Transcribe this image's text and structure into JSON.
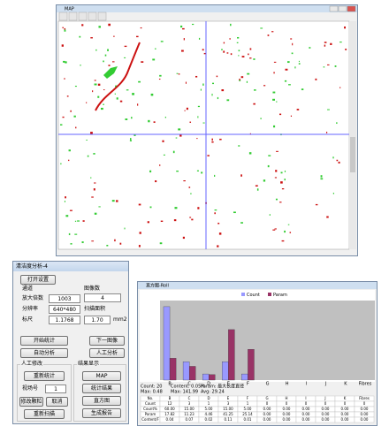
{
  "map_window": {
    "title": "MAP"
  },
  "control_panel": {
    "title": "清洁度分析-4",
    "open_button": "打开设置",
    "channel_group": "通道",
    "magnification_label": "放大倍数",
    "magnification": "1003",
    "resolution_label": "分辨率",
    "resolution": "640*480",
    "scale_label": "标尺",
    "scale": "1.1768",
    "image_count_label": "图像数",
    "image_count": "4",
    "scan_area_label": "扫描面积",
    "scan_area": "1.70",
    "scan_area_unit": "mm2",
    "start_button": "开始统计",
    "next_button": "下一图像",
    "auto_button": "自动分析",
    "manual_button": "人工分析",
    "manual_group": "人工修改",
    "recount_button": "重新统计",
    "field_label": "视场号",
    "field": "1",
    "modify_button": "修改颗粒",
    "cancel_button": "取消",
    "rescan_button": "重新扫描",
    "results_group": "结果显示",
    "map_button": "MAP",
    "stats_button": "统计结果",
    "histogram_button": "直方图",
    "report_button": "生成报告"
  },
  "chart_window": {
    "title": "直方图-Roll",
    "summary": [
      "Count: 20",
      "Content: 0.05%",
      "Param: 最大长度直径"
    ],
    "summary2": [
      "Max: 0.48",
      "Max: 141.99",
      "Avg: 29.24"
    ],
    "table": {
      "header": [
        "No.",
        "B",
        "C",
        "D",
        "E",
        "F",
        "G",
        "H",
        "I",
        "J",
        "K",
        "Fibres"
      ],
      "rows": [
        [
          "Count",
          "12",
          "3",
          "1",
          "3",
          "1",
          "0",
          "0",
          "0",
          "0",
          "0",
          "0"
        ],
        [
          "Count%",
          "60.00",
          "15.00",
          "5.00",
          "15.00",
          "5.00",
          "0.00",
          "0.00",
          "0.00",
          "0.00",
          "0.00",
          "0.00"
        ],
        [
          "Param",
          "17.82",
          "11.23",
          "4.46",
          "41.25",
          "25.14",
          "0.00",
          "0.00",
          "0.00",
          "0.00",
          "0.00",
          "0.00"
        ],
        [
          "Content/F",
          "0.04",
          "0.07",
          "0.02",
          "0.11",
          "0.01",
          "0.00",
          "0.00",
          "0.00",
          "0.00",
          "0.00",
          "0.00"
        ]
      ]
    }
  },
  "chart_data": {
    "type": "bar",
    "categories": [
      "B",
      "C",
      "D",
      "E",
      "F",
      "G",
      "H",
      "I",
      "J",
      "K",
      "Fibres"
    ],
    "series": [
      {
        "name": "Count",
        "color": "#9999ff",
        "values": [
          60,
          15,
          5,
          15,
          5,
          0,
          0,
          0,
          0,
          0,
          0
        ]
      },
      {
        "name": "Param",
        "color": "#993366",
        "values": [
          17.82,
          11.23,
          4.46,
          41.25,
          25.14,
          0,
          0,
          0,
          0,
          0,
          0
        ]
      }
    ],
    "ylim": [
      0,
      65
    ]
  }
}
